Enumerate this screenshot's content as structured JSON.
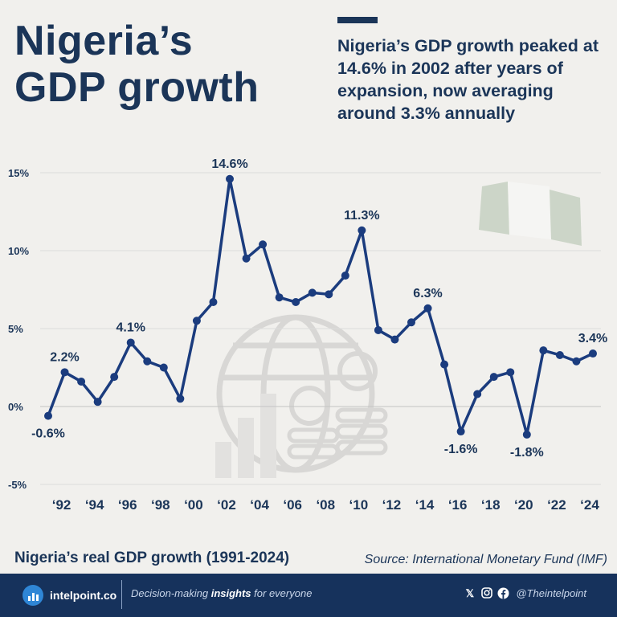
{
  "header": {
    "title_line1": "Nigeria’s",
    "title_line2": "GDP growth",
    "subtitle": "Nigeria’s GDP growth peaked at 14.6% in 2002 after years of expansion, now averaging around 3.3% annually"
  },
  "chart_data": {
    "type": "line",
    "title": "Nigeria’s real GDP growth (1991-2024)",
    "x": [
      1991,
      1992,
      1993,
      1994,
      1995,
      1996,
      1997,
      1998,
      1999,
      2000,
      2001,
      2002,
      2003,
      2004,
      2005,
      2006,
      2007,
      2008,
      2009,
      2010,
      2011,
      2012,
      2013,
      2014,
      2015,
      2016,
      2017,
      2018,
      2019,
      2020,
      2021,
      2022,
      2023,
      2024
    ],
    "values": [
      -0.6,
      2.2,
      1.6,
      0.3,
      1.9,
      4.1,
      2.9,
      2.5,
      0.5,
      5.5,
      6.7,
      14.6,
      9.5,
      10.4,
      7.0,
      6.7,
      7.3,
      7.2,
      8.4,
      11.3,
      4.9,
      4.3,
      5.4,
      6.3,
      2.7,
      -1.6,
      0.8,
      1.9,
      2.2,
      -1.8,
      3.6,
      3.3,
      2.9,
      3.4
    ],
    "ylim": [
      -5,
      15
    ],
    "yticks": [
      -5,
      0,
      5,
      10,
      15
    ],
    "ytick_labels": [
      "-5%",
      "0%",
      "5%",
      "10%",
      "15%"
    ],
    "xtick_labels": [
      "‘92",
      "‘94",
      "‘96",
      "‘98",
      "‘00",
      "‘02",
      "‘04",
      "‘06",
      "‘08",
      "‘10",
      "‘12",
      "‘14",
      "‘16",
      "‘18",
      "‘20",
      "‘22",
      "‘24"
    ],
    "annotations": [
      {
        "year": 1991,
        "label": "-0.6%",
        "pos": "below"
      },
      {
        "year": 1992,
        "label": "2.2%",
        "pos": "above"
      },
      {
        "year": 1996,
        "label": "4.1%",
        "pos": "above"
      },
      {
        "year": 2002,
        "label": "14.6%",
        "pos": "above"
      },
      {
        "year": 2010,
        "label": "11.3%",
        "pos": "above"
      },
      {
        "year": 2014,
        "label": "6.3%",
        "pos": "above"
      },
      {
        "year": 2016,
        "label": "-1.6%",
        "pos": "below"
      },
      {
        "year": 2020,
        "label": "-1.8%",
        "pos": "below"
      },
      {
        "year": 2024,
        "label": "3.4%",
        "pos": "above"
      }
    ],
    "line_color": "#1b3c7e",
    "grid": true
  },
  "caption": "Nigeria’s real GDP growth (1991-2024)",
  "source": "Source: International Monetary Fund (IMF)",
  "footer": {
    "brand": "intelpoint.co",
    "tagline_pre": "Decision-making ",
    "tagline_bold": "insights",
    "tagline_post": " for everyone",
    "handle": "@Theintelpoint",
    "icons": [
      "x-icon",
      "instagram-icon",
      "facebook-icon"
    ]
  },
  "colors": {
    "navy": "#1b3558",
    "footer_bg": "#16325c",
    "background": "#f1f0ed",
    "flag_green": "#c9d3c4"
  }
}
